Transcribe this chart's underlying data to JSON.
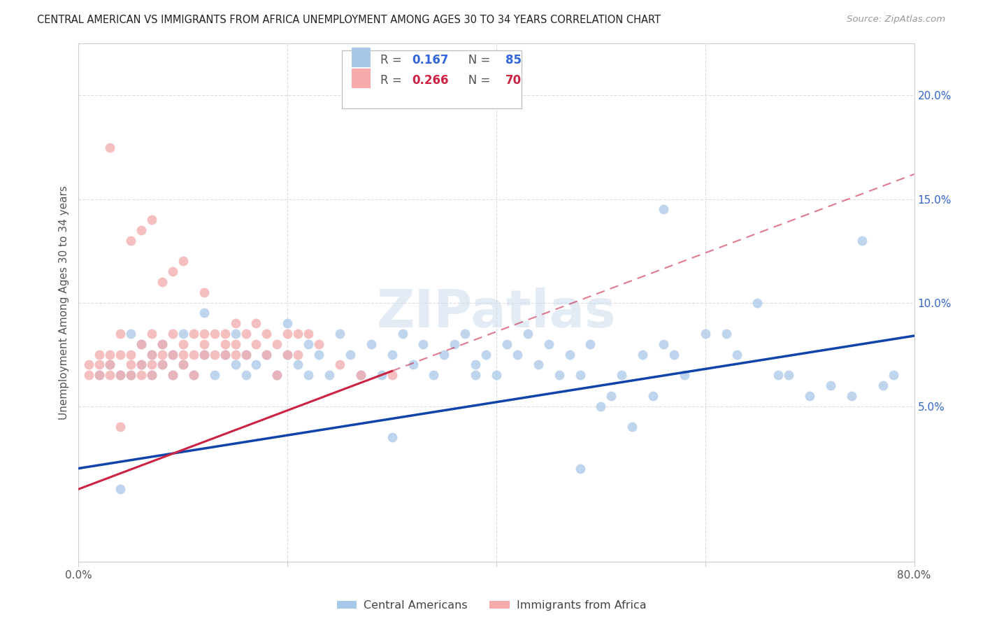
{
  "title": "CENTRAL AMERICAN VS IMMIGRANTS FROM AFRICA UNEMPLOYMENT AMONG AGES 30 TO 34 YEARS CORRELATION CHART",
  "source": "Source: ZipAtlas.com",
  "ylabel": "Unemployment Among Ages 30 to 34 years",
  "blue_color": "#A8C8E8",
  "pink_color": "#F4AAAA",
  "blue_line_color": "#1144AA",
  "pink_line_color": "#CC2244",
  "legend_r_blue": "0.167",
  "legend_n_blue": "85",
  "legend_r_pink": "0.266",
  "legend_n_pink": "70",
  "watermark": "ZIPatlas",
  "xlim": [
    0.0,
    0.8
  ],
  "ylim": [
    -0.025,
    0.225
  ],
  "ytick_positions": [
    0.05,
    0.1,
    0.15,
    0.2
  ],
  "ytick_labels": [
    "5.0%",
    "10.0%",
    "15.0%",
    "20.0%"
  ],
  "blue_intercept": 0.02,
  "blue_slope": 0.08,
  "pink_intercept": 0.01,
  "pink_slope": 0.19,
  "blue_scatter_x": [
    0.02,
    0.03,
    0.04,
    0.05,
    0.05,
    0.06,
    0.06,
    0.07,
    0.07,
    0.08,
    0.08,
    0.09,
    0.09,
    0.1,
    0.1,
    0.11,
    0.12,
    0.12,
    0.13,
    0.14,
    0.15,
    0.15,
    0.16,
    0.16,
    0.17,
    0.18,
    0.19,
    0.2,
    0.2,
    0.21,
    0.22,
    0.22,
    0.23,
    0.24,
    0.25,
    0.26,
    0.27,
    0.28,
    0.29,
    0.3,
    0.31,
    0.32,
    0.33,
    0.34,
    0.35,
    0.36,
    0.37,
    0.38,
    0.39,
    0.4,
    0.41,
    0.42,
    0.43,
    0.44,
    0.45,
    0.46,
    0.47,
    0.48,
    0.49,
    0.5,
    0.51,
    0.52,
    0.53,
    0.54,
    0.55,
    0.56,
    0.57,
    0.58,
    0.6,
    0.62,
    0.63,
    0.65,
    0.67,
    0.68,
    0.7,
    0.72,
    0.74,
    0.75,
    0.77,
    0.78,
    0.04,
    0.3,
    0.38,
    0.48,
    0.56
  ],
  "blue_scatter_y": [
    0.065,
    0.07,
    0.065,
    0.065,
    0.085,
    0.07,
    0.08,
    0.065,
    0.075,
    0.07,
    0.08,
    0.065,
    0.075,
    0.07,
    0.085,
    0.065,
    0.075,
    0.095,
    0.065,
    0.075,
    0.085,
    0.07,
    0.075,
    0.065,
    0.07,
    0.075,
    0.065,
    0.075,
    0.09,
    0.07,
    0.08,
    0.065,
    0.075,
    0.065,
    0.085,
    0.075,
    0.065,
    0.08,
    0.065,
    0.075,
    0.085,
    0.07,
    0.08,
    0.065,
    0.075,
    0.08,
    0.085,
    0.07,
    0.075,
    0.065,
    0.08,
    0.075,
    0.085,
    0.07,
    0.08,
    0.065,
    0.075,
    0.065,
    0.08,
    0.05,
    0.055,
    0.065,
    0.04,
    0.075,
    0.055,
    0.08,
    0.075,
    0.065,
    0.085,
    0.085,
    0.075,
    0.1,
    0.065,
    0.065,
    0.055,
    0.06,
    0.055,
    0.13,
    0.06,
    0.065,
    0.01,
    0.035,
    0.065,
    0.02,
    0.145
  ],
  "pink_scatter_x": [
    0.01,
    0.01,
    0.02,
    0.02,
    0.02,
    0.03,
    0.03,
    0.03,
    0.04,
    0.04,
    0.04,
    0.05,
    0.05,
    0.05,
    0.06,
    0.06,
    0.06,
    0.07,
    0.07,
    0.07,
    0.08,
    0.08,
    0.08,
    0.09,
    0.09,
    0.09,
    0.1,
    0.1,
    0.1,
    0.11,
    0.11,
    0.11,
    0.12,
    0.12,
    0.12,
    0.13,
    0.13,
    0.14,
    0.14,
    0.14,
    0.15,
    0.15,
    0.15,
    0.16,
    0.16,
    0.17,
    0.17,
    0.18,
    0.18,
    0.19,
    0.19,
    0.2,
    0.2,
    0.21,
    0.21,
    0.22,
    0.23,
    0.25,
    0.27,
    0.3,
    0.05,
    0.08,
    0.1,
    0.12,
    0.07,
    0.06,
    0.09,
    0.03,
    0.07,
    0.04
  ],
  "pink_scatter_y": [
    0.07,
    0.065,
    0.07,
    0.065,
    0.075,
    0.075,
    0.07,
    0.065,
    0.065,
    0.075,
    0.085,
    0.07,
    0.075,
    0.065,
    0.08,
    0.07,
    0.065,
    0.075,
    0.07,
    0.065,
    0.08,
    0.075,
    0.07,
    0.085,
    0.075,
    0.065,
    0.08,
    0.075,
    0.07,
    0.085,
    0.075,
    0.065,
    0.085,
    0.08,
    0.075,
    0.085,
    0.075,
    0.085,
    0.08,
    0.075,
    0.09,
    0.08,
    0.075,
    0.085,
    0.075,
    0.09,
    0.08,
    0.085,
    0.075,
    0.08,
    0.065,
    0.085,
    0.075,
    0.085,
    0.075,
    0.085,
    0.08,
    0.07,
    0.065,
    0.065,
    0.13,
    0.11,
    0.12,
    0.105,
    0.14,
    0.135,
    0.115,
    0.175,
    0.085,
    0.04
  ]
}
